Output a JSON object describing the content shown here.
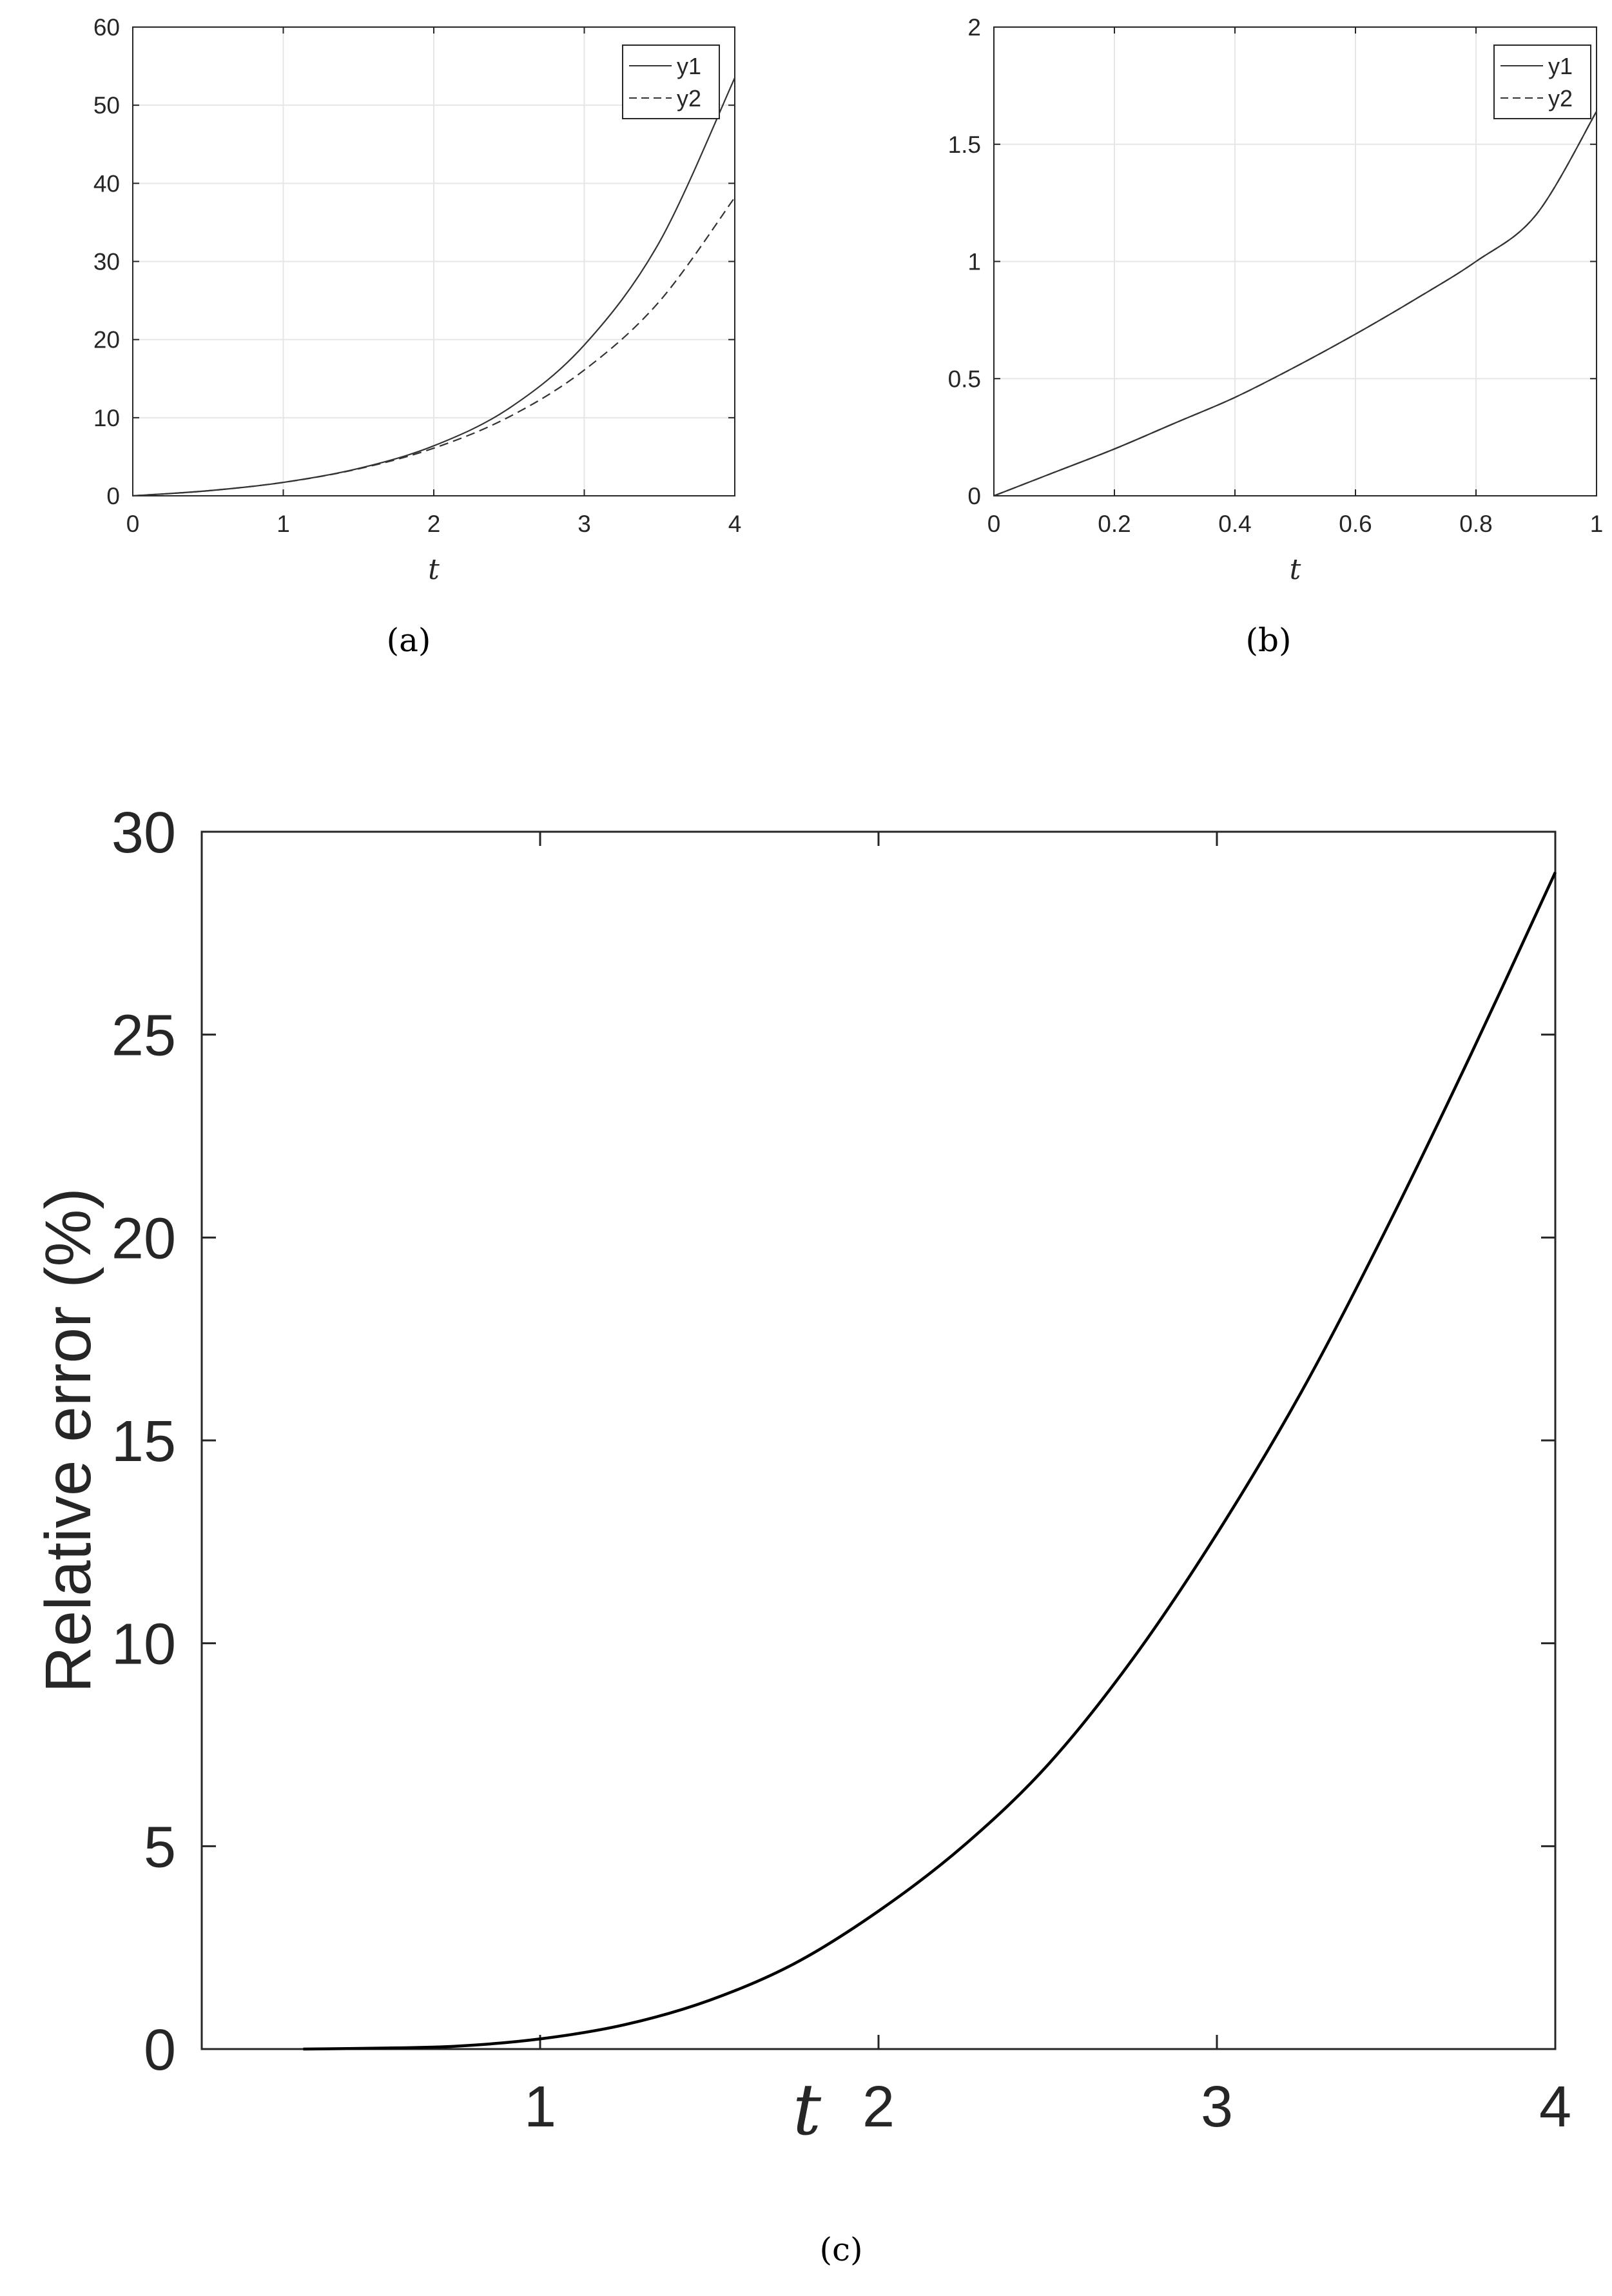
{
  "chart_data": [
    {
      "id": "a",
      "type": "line",
      "caption": "(a)",
      "xlabel": "t",
      "ylabel": "",
      "xlim": [
        0,
        4
      ],
      "ylim": [
        0,
        60
      ],
      "xticks": [
        "0",
        "1",
        "2",
        "3",
        "4"
      ],
      "yticks": [
        "0",
        "10",
        "20",
        "30",
        "40",
        "50",
        "60"
      ],
      "grid": true,
      "legend_position": "top-right",
      "x": [
        0,
        0.5,
        1,
        1.5,
        2,
        2.5,
        3,
        3.5,
        4
      ],
      "series": [
        {
          "name": "y1",
          "style": "solid",
          "values": [
            0,
            0.65,
            1.72,
            3.5,
            6.4,
            11.2,
            19.3,
            32.5,
            53.5
          ]
        },
        {
          "name": "y2",
          "style": "dashed",
          "values": [
            0,
            0.65,
            1.72,
            3.45,
            6.1,
            10.1,
            16.1,
            24.9,
            38.2
          ]
        }
      ]
    },
    {
      "id": "b",
      "type": "line",
      "caption": "(b)",
      "xlabel": "t",
      "ylabel": "",
      "xlim": [
        0,
        1
      ],
      "ylim": [
        0,
        2
      ],
      "xticks": [
        "0",
        "0.2",
        "0.4",
        "0.6",
        "0.8",
        "1"
      ],
      "yticks": [
        "0",
        "0.5",
        "1",
        "1.5",
        "2"
      ],
      "grid": true,
      "legend_position": "top-right",
      "x": [
        0,
        0.1,
        0.2,
        0.3,
        0.4,
        0.5,
        0.6,
        0.7,
        0.8,
        0.9,
        1.0
      ],
      "series": [
        {
          "name": "y1",
          "style": "solid",
          "values": [
            0,
            0.1,
            0.2,
            0.31,
            0.42,
            0.55,
            0.69,
            0.84,
            1.0,
            1.2,
            1.64
          ]
        },
        {
          "name": "y2",
          "style": "dashed",
          "values": [
            0,
            0.1,
            0.2,
            0.31,
            0.42,
            0.55,
            0.69,
            0.84,
            1.0,
            1.2,
            1.64
          ]
        }
      ]
    },
    {
      "id": "c",
      "type": "line",
      "caption": "(c)",
      "xlabel": "t",
      "ylabel": "Relative error (%)",
      "xlim": [
        0,
        4
      ],
      "ylim": [
        0,
        30
      ],
      "xticks": [
        "1",
        "2",
        "3",
        "4"
      ],
      "yticks": [
        "0",
        "5",
        "10",
        "15",
        "20",
        "25",
        "30"
      ],
      "grid": false,
      "x": [
        0.3,
        0.5,
        0.75,
        1.0,
        1.25,
        1.5,
        1.75,
        2.0,
        2.25,
        2.5,
        2.75,
        3.0,
        3.25,
        3.5,
        3.75,
        4.0
      ],
      "series": [
        {
          "name": "",
          "style": "solid",
          "values": [
            0,
            0.02,
            0.07,
            0.25,
            0.6,
            1.2,
            2.1,
            3.4,
            5.0,
            7.0,
            9.6,
            12.7,
            16.2,
            20.2,
            24.5,
            29.0
          ]
        }
      ]
    }
  ]
}
